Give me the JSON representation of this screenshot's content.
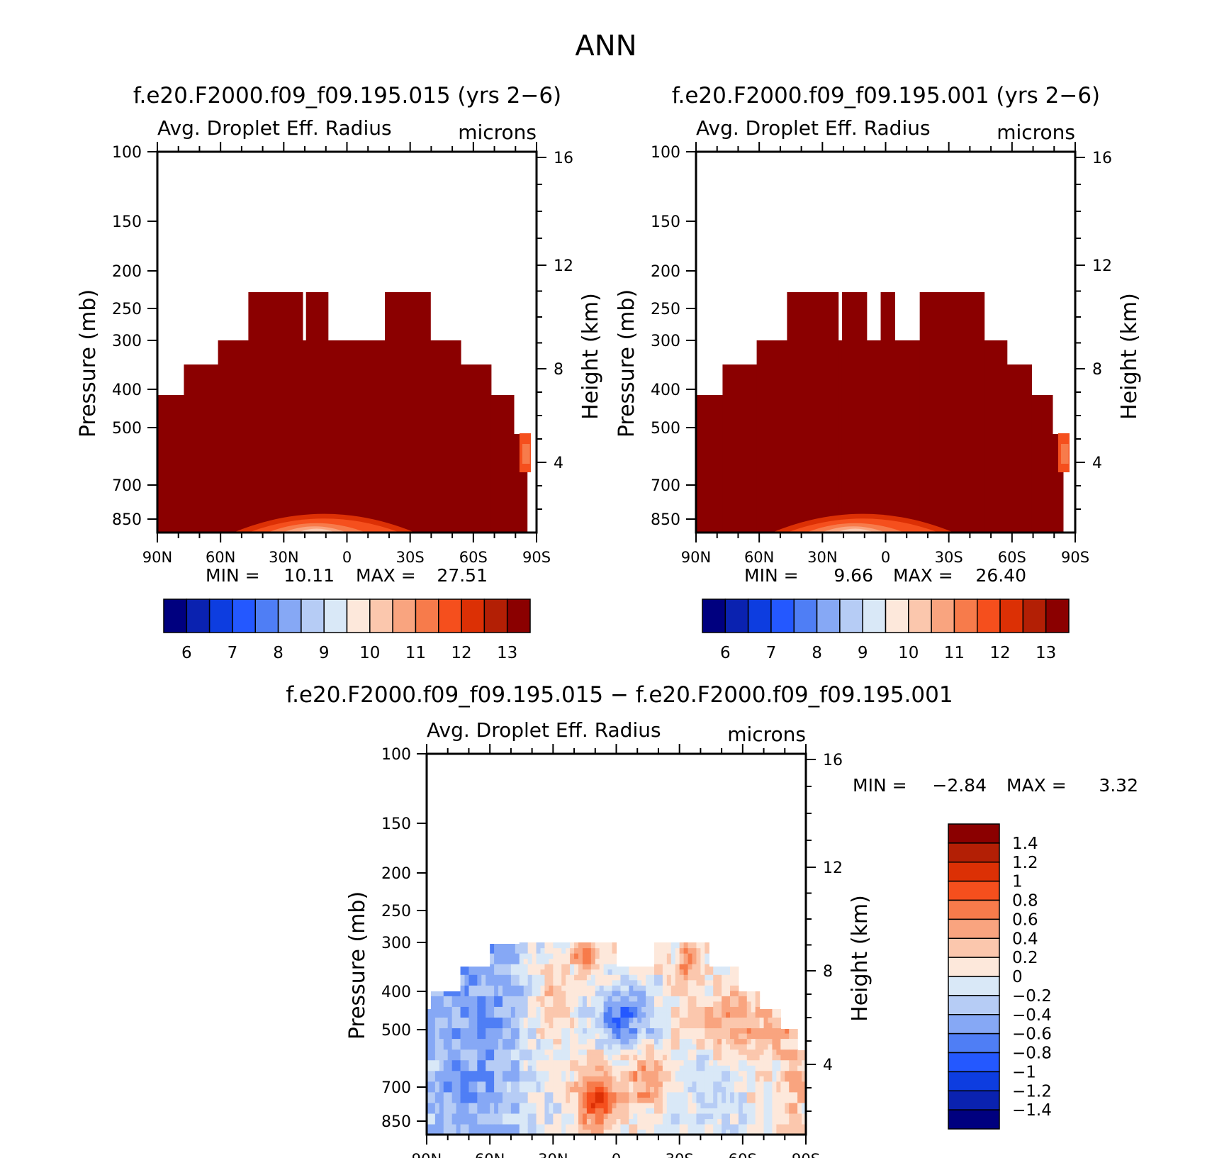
{
  "page_title": "ANN",
  "panels": [
    {
      "title": "f.e20.F2000.f09_f09.195.015 (yrs 2−6)",
      "var_label": "Avg. Droplet Eff. Radius",
      "units": "microns",
      "stats": {
        "min_label": "MIN =",
        "min_value": "10.11",
        "max_label": "MAX =",
        "max_value": "27.51"
      }
    },
    {
      "title": "f.e20.F2000.f09_f09.195.001 (yrs 2−6)",
      "var_label": "Avg. Droplet Eff. Radius",
      "units": "microns",
      "stats": {
        "min_label": "MIN =",
        "min_value": "9.66",
        "max_label": "MAX =",
        "max_value": "26.40"
      }
    },
    {
      "title": "f.e20.F2000.f09_f09.195.015 − f.e20.F2000.f09_f09.195.001",
      "var_label": "Avg. Droplet Eff. Radius",
      "units": "microns",
      "stats": {
        "min_label": "MIN =",
        "min_value": "−2.84",
        "max_label": "MAX =",
        "max_value": "3.32"
      }
    }
  ],
  "axes": {
    "ylabel": "Pressure (mb)",
    "y2label": "Height (km)",
    "pressure_ticks": [
      "100",
      "150",
      "200",
      "250",
      "300",
      "400",
      "500",
      "700",
      "850"
    ],
    "height_ticks": [
      "16",
      "12",
      "8",
      "4"
    ],
    "lat_ticks": [
      "90N",
      "60N",
      "30N",
      "0",
      "30S",
      "60S",
      "90S"
    ]
  },
  "colorbars": {
    "abs_labels": [
      "6",
      "7",
      "8",
      "9",
      "10",
      "11",
      "12",
      "13"
    ],
    "abs_colors": [
      "#00007f",
      "#0a22b0",
      "#0d3de0",
      "#2458ff",
      "#4f7ef5",
      "#86a8f5",
      "#b6ccf5",
      "#d9e8f7",
      "#fde8db",
      "#fbc7ad",
      "#f9a47f",
      "#f77b4b",
      "#f54f1d",
      "#dc3005",
      "#b31f05",
      "#8b0000"
    ],
    "diff_labels": [
      "1.4",
      "1.2",
      "1",
      "0.8",
      "0.6",
      "0.4",
      "0.2",
      "0",
      "−0.2",
      "−0.4",
      "−0.6",
      "−0.8",
      "−1",
      "−1.2",
      "−1.4"
    ],
    "diff_colors": [
      "#8b0000",
      "#b31f05",
      "#dc3005",
      "#f54f1d",
      "#f77b4b",
      "#f9a47f",
      "#fbc7ad",
      "#fde8db",
      "#d9e8f7",
      "#b6ccf5",
      "#86a8f5",
      "#4f7ef5",
      "#2458ff",
      "#0d3de0",
      "#0a22b0",
      "#00007f"
    ]
  },
  "chart_data": [
    {
      "type": "heatmap",
      "title": "f.e20.F2000.f09_f09.195.015 (yrs 2−6)",
      "variable": "Avg. Droplet Eff. Radius",
      "units": "microns",
      "x": "latitude (90N to 90S)",
      "y": "pressure (mb)",
      "ylim": [
        850,
        100
      ],
      "min": 10.11,
      "max": 27.51,
      "levels": [
        6,
        7,
        8,
        9,
        10,
        11,
        12,
        13
      ],
      "dominant_value": "> 13 (dark red) throughout 300–850 mb"
    },
    {
      "type": "heatmap",
      "title": "f.e20.F2000.f09_f09.195.001 (yrs 2−6)",
      "variable": "Avg. Droplet Eff. Radius",
      "units": "microns",
      "x": "latitude (90N to 90S)",
      "y": "pressure (mb)",
      "ylim": [
        850,
        100
      ],
      "min": 9.66,
      "max": 26.4,
      "levels": [
        6,
        7,
        8,
        9,
        10,
        11,
        12,
        13
      ],
      "dominant_value": "> 13 (dark red) throughout 300–850 mb"
    },
    {
      "type": "heatmap",
      "title": "f.e20.F2000.f09_f09.195.015 − f.e20.F2000.f09_f09.195.001",
      "variable": "Avg. Droplet Eff. Radius",
      "units": "microns",
      "x": "latitude (90N to 90S)",
      "y": "pressure (mb)",
      "ylim": [
        850,
        100
      ],
      "min": -2.84,
      "max": 3.32,
      "levels": [
        -1.4,
        -1.2,
        -1,
        -0.8,
        -0.6,
        -0.4,
        -0.2,
        0,
        0.2,
        0.4,
        0.6,
        0.8,
        1,
        1.2,
        1.4
      ]
    }
  ]
}
